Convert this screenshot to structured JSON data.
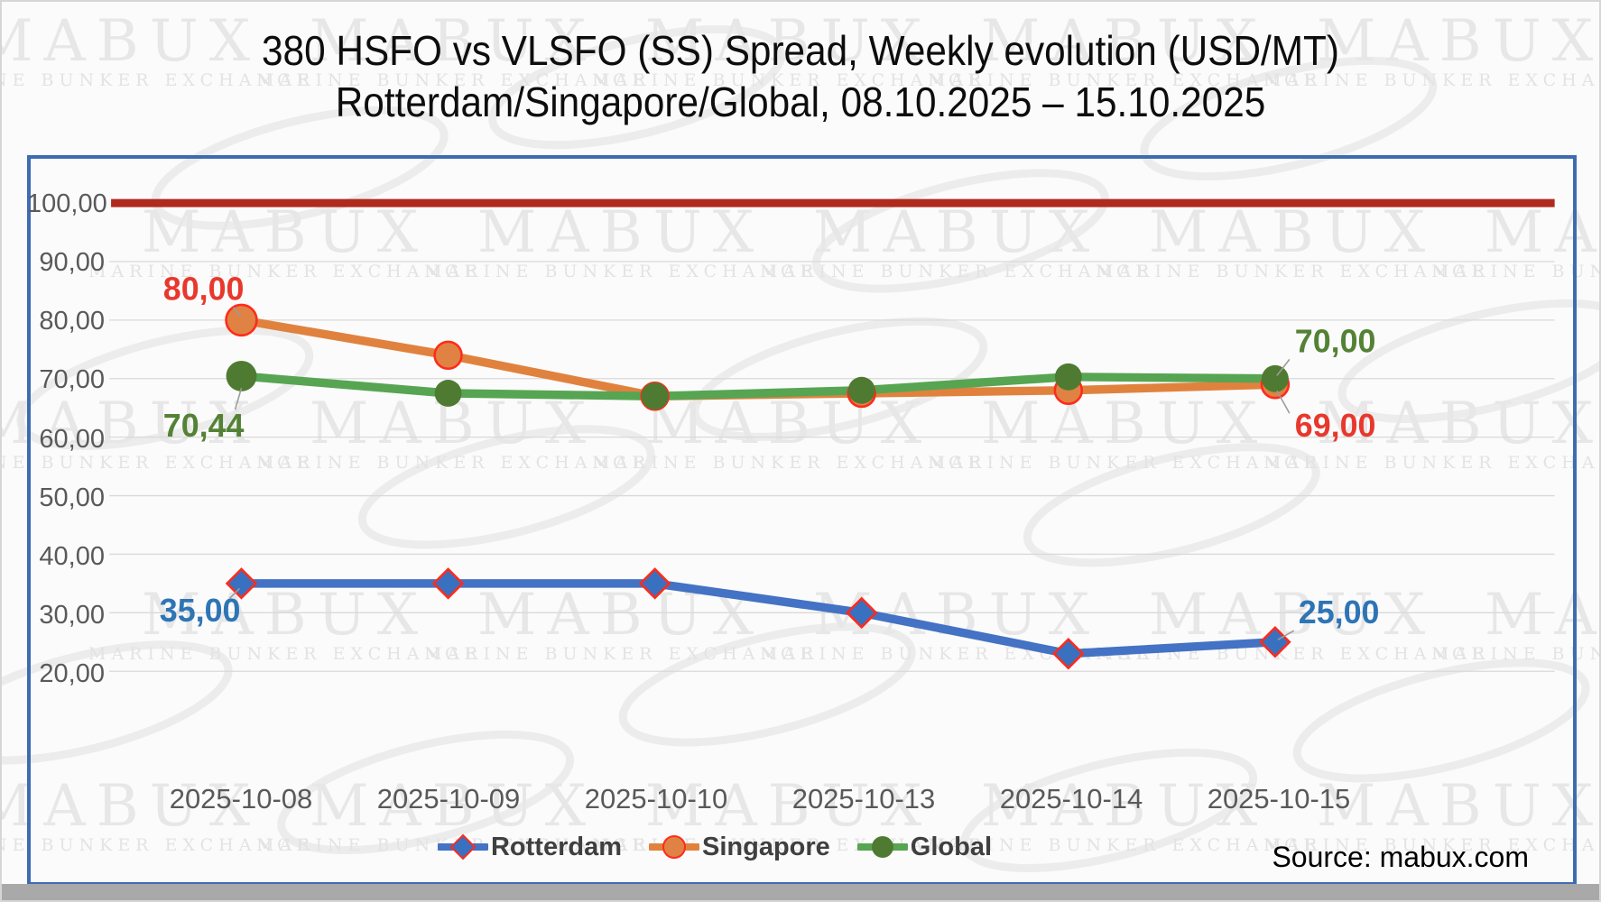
{
  "title": {
    "line1": "380 HSFO vs VLSFO (SS) Spread, Weekly evolution (USD/MT)",
    "line2": "Rotterdam/Singapore/Global, 08.10.2025 – 15.10.2025"
  },
  "watermark": {
    "brand": "MABUX",
    "tagline": "MARINE BUNKER EXCHANGE"
  },
  "source": {
    "label": "Source: mabux.com"
  },
  "colors": {
    "rotterdam": "#4472c4",
    "rotterdam_marker": "#3a70c0",
    "singapore": "#e0823e",
    "singapore_marker": "#df8244",
    "global": "#57a552",
    "global_marker": "#4e7b31",
    "marker_outline": "#ff2b1a",
    "baseline": "#b02a1e",
    "gridline": "#d9d9d9",
    "axis_text": "#595959",
    "frame": "#3e6cb0",
    "callout_red": "#e8382d",
    "callout_green": "#548235",
    "callout_blue": "#2e75b6",
    "leader_line": "#9b9b9b"
  },
  "chart_data": {
    "type": "line",
    "title": "380 HSFO vs VLSFO (SS) Spread, Weekly evolution (USD/MT) — Rotterdam/Singapore/Global, 08.10.2025 – 15.10.2025",
    "categories": [
      "2025-10-08",
      "2025-10-09",
      "2025-10-10",
      "2025-10-13",
      "2025-10-14",
      "2025-10-15"
    ],
    "series": [
      {
        "name": "Rotterdam",
        "marker": "diamond",
        "values": [
          35.0,
          35.0,
          35.0,
          30.0,
          23.0,
          25.0
        ]
      },
      {
        "name": "Singapore",
        "marker": "circle",
        "values": [
          80.0,
          74.0,
          67.0,
          67.5,
          68.0,
          69.0
        ]
      },
      {
        "name": "Global",
        "marker": "circle",
        "values": [
          70.44,
          67.5,
          67.0,
          68.0,
          70.3,
          70.0
        ]
      }
    ],
    "ylim": [
      20,
      100
    ],
    "y_ticks": [
      100,
      90,
      80,
      70,
      60,
      50,
      40,
      30,
      20
    ],
    "y_tick_labels": [
      "100,00",
      "90,00",
      "80,00",
      "70,00",
      "60,00",
      "50,00",
      "40,00",
      "30,00",
      "20,00"
    ],
    "baseline": {
      "value": 100
    },
    "grid": "horizontal",
    "legend_position": "bottom",
    "callouts": [
      {
        "id": "singapore-start",
        "series": "Singapore",
        "index": 0,
        "text": "80,00",
        "color": "#e8382d"
      },
      {
        "id": "global-start",
        "series": "Global",
        "index": 0,
        "text": "70,44",
        "color": "#548235"
      },
      {
        "id": "rotterdam-start",
        "series": "Rotterdam",
        "index": 0,
        "text": "35,00",
        "color": "#2e75b6"
      },
      {
        "id": "global-end",
        "series": "Global",
        "index": 5,
        "text": "70,00",
        "color": "#548235"
      },
      {
        "id": "singapore-end",
        "series": "Singapore",
        "index": 5,
        "text": "69,00",
        "color": "#e8382d"
      },
      {
        "id": "rotterdam-end",
        "series": "Rotterdam",
        "index": 5,
        "text": "25,00",
        "color": "#2e75b6"
      }
    ]
  },
  "legend": {
    "items": [
      "Rotterdam",
      "Singapore",
      "Global"
    ]
  }
}
